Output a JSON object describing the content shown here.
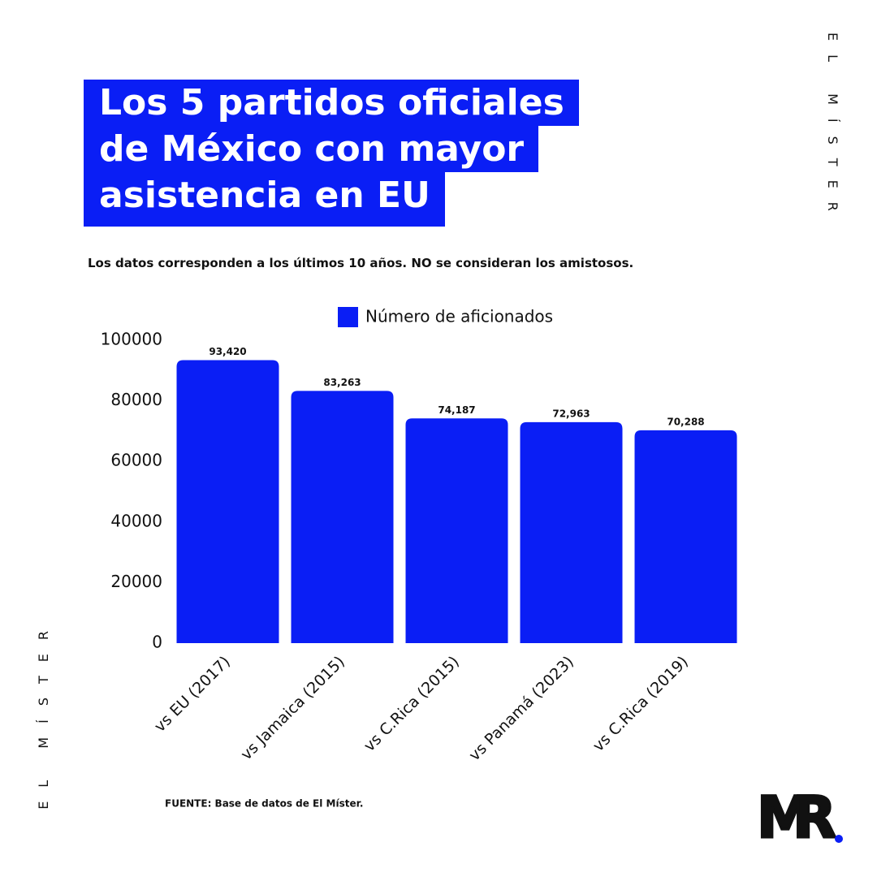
{
  "chart_data": {
    "type": "bar",
    "title_lines": [
      "Los 5 partidos oficiales",
      "de México con mayor",
      "asistencia en EU"
    ],
    "subtitle": "Los datos corresponden a los últimos 10 años. NO se consideran los amistosos.",
    "categories": [
      "vs EU (2017)",
      "vs Jamaica (2015)",
      "vs C.Rica (2015)",
      "vs Panamá (2023)",
      "vs C.Rica (2019)"
    ],
    "series": [
      {
        "name": "Número de aficionados",
        "color": "#0a1ef5",
        "values": [
          93420,
          83263,
          74187,
          72963,
          70288
        ],
        "value_labels": [
          "93,420",
          "83,263",
          "74,187",
          "72,963",
          "70,288"
        ]
      }
    ],
    "ylim": [
      0,
      100000
    ],
    "yticks": [
      0,
      20000,
      40000,
      60000,
      80000,
      100000
    ],
    "legend": "top",
    "grid": false,
    "source": "FUENTE: Base de datos de El Míster.",
    "brand": "EL MÍSTER",
    "logo": "MR"
  }
}
